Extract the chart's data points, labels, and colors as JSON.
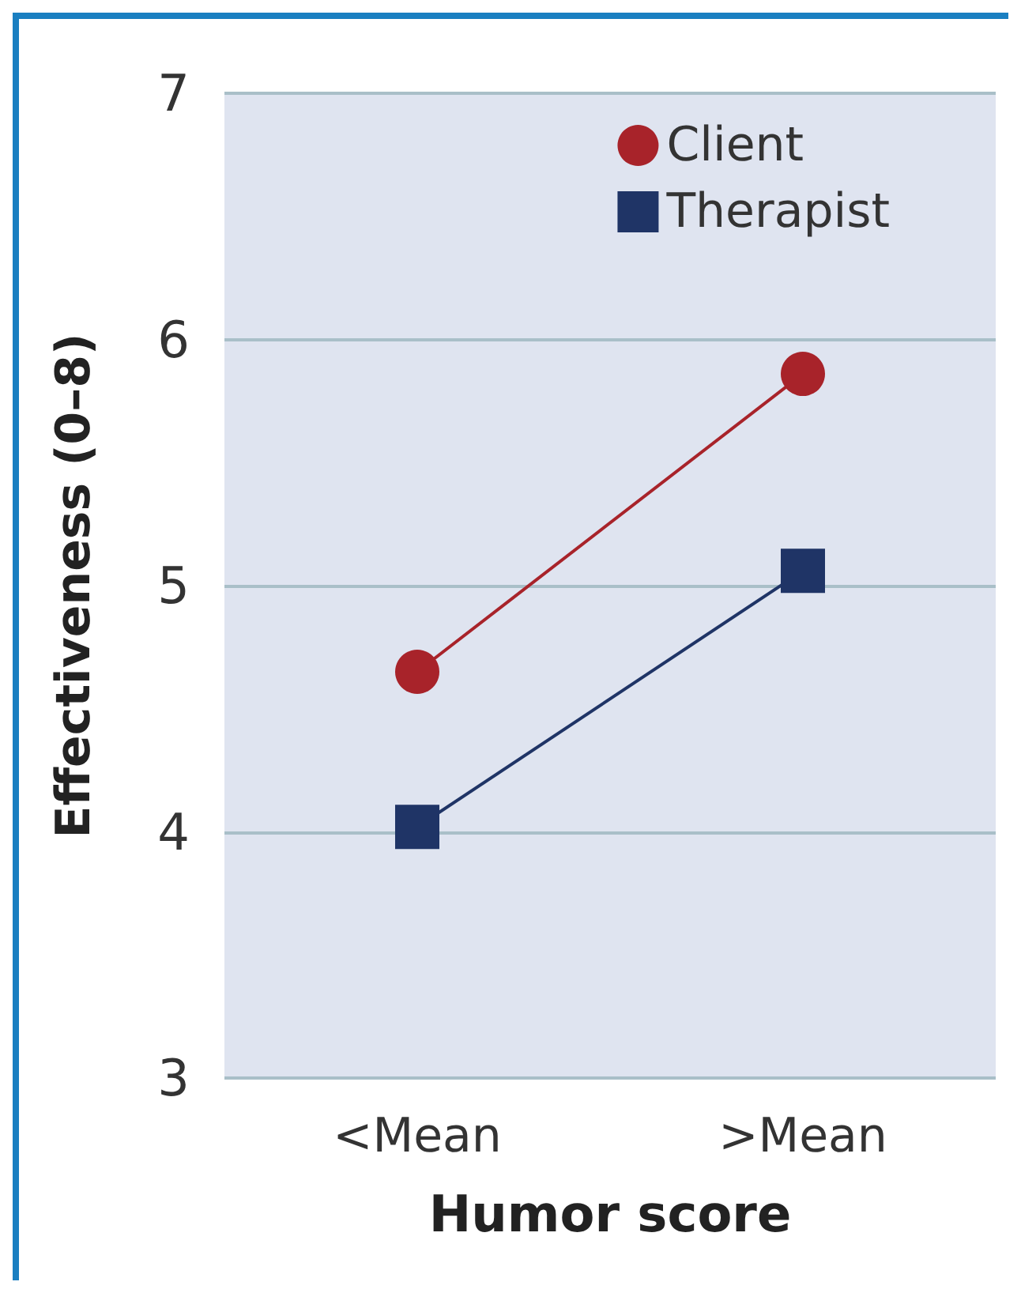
{
  "chart_data": {
    "type": "line",
    "xlabel": "Humor score",
    "ylabel": "Effectiveness (0–8)",
    "categories": [
      "<Mean",
      ">Mean"
    ],
    "series": [
      {
        "name": "Client",
        "color": "#a8232a",
        "values": [
          4.65,
          5.86
        ],
        "marker": "circle"
      },
      {
        "name": "Therapist",
        "color": "#1f3466",
        "values": [
          4.02,
          5.06
        ],
        "marker": "square"
      }
    ],
    "ylim": [
      3,
      7
    ],
    "yticks": [
      3,
      4,
      5,
      6,
      7
    ],
    "grid": "y",
    "legend": "top right"
  }
}
